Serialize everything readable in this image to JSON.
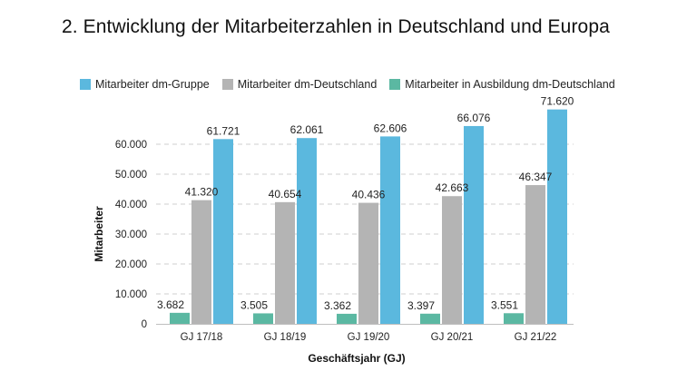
{
  "page": {
    "title": "2. Entwicklung der Mitarbeiterzahlen in Deutschland und Europa"
  },
  "chart_data": {
    "type": "bar",
    "title": "2. Entwicklung der Mitarbeiterzahlen in Deutschland und Europa",
    "xlabel": "Geschäftsjahr (GJ)",
    "ylabel": "Mitarbeiter",
    "ylim": [
      0,
      70000
    ],
    "yticks": [
      0,
      10000,
      20000,
      30000,
      40000,
      50000,
      60000
    ],
    "ytick_labels": [
      "0",
      "10.000",
      "20.000",
      "30.000",
      "40.000",
      "50.000",
      "60.000"
    ],
    "grid": "horizontal dashed",
    "legend_position": "top",
    "categories": [
      "GJ 17/18",
      "GJ 18/19",
      "GJ 19/20",
      "GJ 20/21",
      "GJ 21/22"
    ],
    "series": [
      {
        "name": "Mitarbeiter in Ausbildung dm-Deutschland",
        "color": "#5bb8a2",
        "values": [
          3682,
          3505,
          3362,
          3397,
          3551
        ],
        "labels": [
          "3.682",
          "3.505",
          "3.362",
          "3.397",
          "3.551"
        ]
      },
      {
        "name": "Mitarbeiter dm-Deutschland",
        "color": "#b4b4b4",
        "values": [
          41320,
          40654,
          40436,
          42663,
          46347
        ],
        "labels": [
          "41.320",
          "40.654",
          "40.436",
          "42.663",
          "46.347"
        ]
      },
      {
        "name": "Mitarbeiter dm-Gruppe",
        "color": "#5bb8de",
        "values": [
          61721,
          62061,
          62606,
          66076,
          71620
        ],
        "labels": [
          "61.721",
          "62.061",
          "62.606",
          "66.076",
          "71.620"
        ]
      }
    ],
    "legend_order": [
      2,
      1,
      0
    ]
  }
}
